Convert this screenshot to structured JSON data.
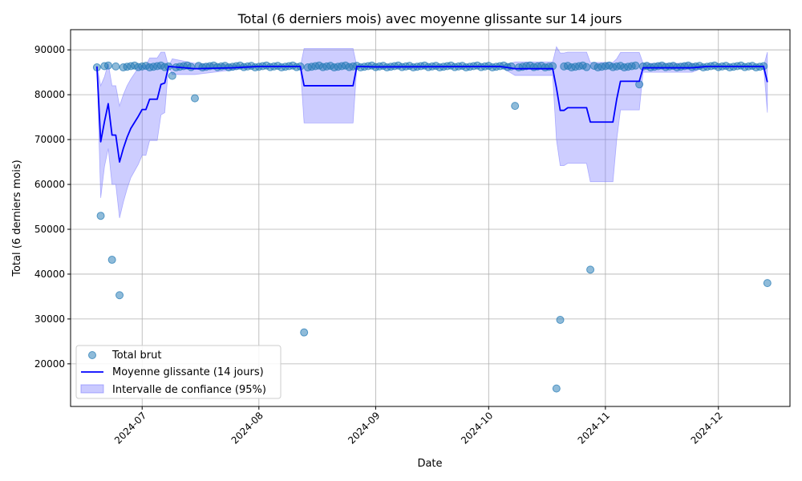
{
  "chart_data": {
    "type": "scatter",
    "title": "Total (6 derniers mois) avec moyenne glissante sur 14 jours",
    "xlabel": "Date",
    "ylabel": "Total (6 derniers mois)",
    "xlim": [
      "2024-06-12",
      "2024-12-20"
    ],
    "ylim": [
      10500,
      94500
    ],
    "x_ticks": [
      "2024-07-01",
      "2024-08-01",
      "2024-09-01",
      "2024-10-01",
      "2024-11-01",
      "2024-12-01"
    ],
    "x_tick_labels": [
      "2024-07",
      "2024-08",
      "2024-09",
      "2024-10",
      "2024-11",
      "2024-12"
    ],
    "y_ticks": [
      20000,
      30000,
      40000,
      50000,
      60000,
      70000,
      80000,
      90000
    ],
    "y_tick_labels": [
      "20000",
      "30000",
      "40000",
      "50000",
      "60000",
      "70000",
      "80000",
      "90000"
    ],
    "grid": true,
    "legend_position": "lower-left",
    "legend": [
      "Total brut",
      "Moyenne glissante (14 jours)",
      "Intervalle de confiance (95%)"
    ],
    "colors": {
      "raw_points": "#1f77b4",
      "rolling_line": "#0000ff",
      "ci_fill": "#7b7bff"
    },
    "series": [
      {
        "name": "Total brut",
        "kind": "scatter",
        "default_y": 86300,
        "x_start": "2024-06-19",
        "x_end": "2024-12-14",
        "outliers": [
          {
            "x": "2024-06-20",
            "y": 53000
          },
          {
            "x": "2024-06-23",
            "y": 43200
          },
          {
            "x": "2024-06-25",
            "y": 35300
          },
          {
            "x": "2024-07-09",
            "y": 84200
          },
          {
            "x": "2024-07-15",
            "y": 79200
          },
          {
            "x": "2024-08-13",
            "y": 27000
          },
          {
            "x": "2024-10-08",
            "y": 77500
          },
          {
            "x": "2024-10-19",
            "y": 14500
          },
          {
            "x": "2024-10-20",
            "y": 29800
          },
          {
            "x": "2024-10-28",
            "y": 41000
          },
          {
            "x": "2024-11-10",
            "y": 82300
          },
          {
            "x": "2024-12-14",
            "y": 38000
          }
        ]
      },
      {
        "name": "Moyenne glissante (14 jours)",
        "kind": "line",
        "points": [
          [
            "2024-06-19",
            86300
          ],
          [
            "2024-06-20",
            69500
          ],
          [
            "2024-06-21",
            74000
          ],
          [
            "2024-06-22",
            78000
          ],
          [
            "2024-06-23",
            71000
          ],
          [
            "2024-06-24",
            71000
          ],
          [
            "2024-06-25",
            65000
          ],
          [
            "2024-06-26",
            68000
          ],
          [
            "2024-06-27",
            70500
          ],
          [
            "2024-06-28",
            72500
          ],
          [
            "2024-06-30",
            75200
          ],
          [
            "2024-07-01",
            76700
          ],
          [
            "2024-07-02",
            76700
          ],
          [
            "2024-07-03",
            79000
          ],
          [
            "2024-07-05",
            79000
          ],
          [
            "2024-07-06",
            82300
          ],
          [
            "2024-07-07",
            82600
          ],
          [
            "2024-07-08",
            86300
          ],
          [
            "2024-07-15",
            85800
          ],
          [
            "2024-07-20",
            85900
          ],
          [
            "2024-07-25",
            86000
          ],
          [
            "2024-08-01",
            86300
          ],
          [
            "2024-08-12",
            86300
          ],
          [
            "2024-08-13",
            82000
          ],
          [
            "2024-08-26",
            82000
          ],
          [
            "2024-08-27",
            86300
          ],
          [
            "2024-09-01",
            86200
          ],
          [
            "2024-10-04",
            86300
          ],
          [
            "2024-10-08",
            85800
          ],
          [
            "2024-10-18",
            85800
          ],
          [
            "2024-10-19",
            81500
          ],
          [
            "2024-10-20",
            76500
          ],
          [
            "2024-10-21",
            76500
          ],
          [
            "2024-10-22",
            77100
          ],
          [
            "2024-10-27",
            77100
          ],
          [
            "2024-10-28",
            73900
          ],
          [
            "2024-11-03",
            73900
          ],
          [
            "2024-11-04",
            79000
          ],
          [
            "2024-11-05",
            83000
          ],
          [
            "2024-11-09",
            83000
          ],
          [
            "2024-11-10",
            83000
          ],
          [
            "2024-11-11",
            86000
          ],
          [
            "2024-11-24",
            86000
          ],
          [
            "2024-11-28",
            86300
          ],
          [
            "2024-12-13",
            86300
          ],
          [
            "2024-12-14",
            82800
          ]
        ]
      },
      {
        "name": "Intervalle de confiance (95%)",
        "kind": "band",
        "points": [
          [
            "2024-06-19",
            86300,
            86300
          ],
          [
            "2024-06-20",
            57000,
            82000
          ],
          [
            "2024-06-21",
            64000,
            84000
          ],
          [
            "2024-06-22",
            68000,
            87000
          ],
          [
            "2024-06-23",
            60000,
            82000
          ],
          [
            "2024-06-24",
            60000,
            82000
          ],
          [
            "2024-06-25",
            52500,
            77500
          ],
          [
            "2024-06-26",
            56000,
            80000
          ],
          [
            "2024-06-27",
            59000,
            82000
          ],
          [
            "2024-06-28",
            61500,
            83500
          ],
          [
            "2024-06-30",
            64500,
            86000
          ],
          [
            "2024-07-01",
            66500,
            86500
          ],
          [
            "2024-07-02",
            66500,
            86500
          ],
          [
            "2024-07-03",
            69800,
            88200
          ],
          [
            "2024-07-05",
            69800,
            88200
          ],
          [
            "2024-07-06",
            75500,
            89500
          ],
          [
            "2024-07-07",
            76000,
            89500
          ],
          [
            "2024-07-08",
            86300,
            86300
          ],
          [
            "2024-07-09",
            84500,
            88000
          ],
          [
            "2024-07-15",
            84500,
            87000
          ],
          [
            "2024-07-20",
            85000,
            86800
          ],
          [
            "2024-07-25",
            85500,
            86600
          ],
          [
            "2024-08-01",
            86300,
            86300
          ],
          [
            "2024-08-12",
            86300,
            86300
          ],
          [
            "2024-08-13",
            73700,
            90300
          ],
          [
            "2024-08-26",
            73700,
            90300
          ],
          [
            "2024-08-27",
            86300,
            86300
          ],
          [
            "2024-10-04",
            86300,
            86300
          ],
          [
            "2024-10-08",
            84300,
            87300
          ],
          [
            "2024-10-18",
            84300,
            87300
          ],
          [
            "2024-10-19",
            70000,
            90700
          ],
          [
            "2024-10-20",
            64200,
            89300
          ],
          [
            "2024-10-21",
            64200,
            89300
          ],
          [
            "2024-10-22",
            64700,
            89500
          ],
          [
            "2024-10-27",
            64700,
            89500
          ],
          [
            "2024-10-28",
            60600,
            87200
          ],
          [
            "2024-11-03",
            60600,
            87200
          ],
          [
            "2024-11-04",
            70000,
            88000
          ],
          [
            "2024-11-05",
            76600,
            89400
          ],
          [
            "2024-11-10",
            76600,
            89400
          ],
          [
            "2024-11-11",
            85000,
            87000
          ],
          [
            "2024-11-24",
            85000,
            87000
          ],
          [
            "2024-11-28",
            86300,
            86300
          ],
          [
            "2024-12-13",
            86300,
            86300
          ],
          [
            "2024-12-14",
            76000,
            89500
          ]
        ]
      }
    ]
  }
}
